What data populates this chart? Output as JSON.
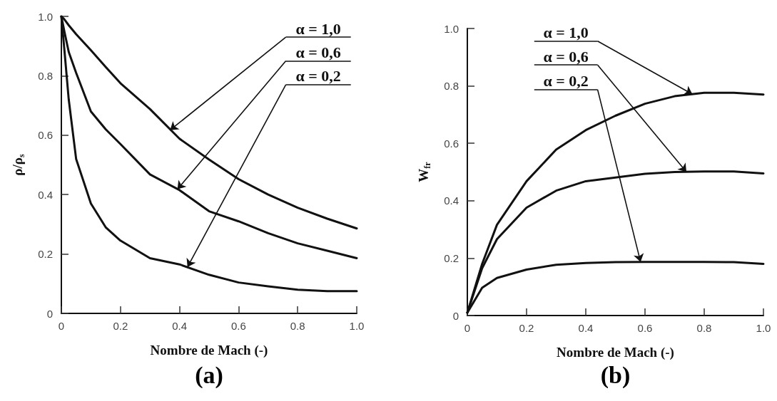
{
  "chart_data": [
    {
      "type": "line",
      "title": "(a)",
      "xlabel": "Nombre de Mach (-)",
      "ylabel": "ρ/ρ$_{s}$",
      "xlim": [
        0,
        1
      ],
      "ylim": [
        0,
        1
      ],
      "xticks": [
        0,
        0.2,
        0.4,
        0.6,
        0.8,
        {
          "value": 1,
          "label": "1.0"
        }
      ],
      "yticks": [
        0,
        0.2,
        0.4,
        0.6,
        0.8,
        {
          "value": 1,
          "label": "1.0"
        }
      ],
      "grid": false,
      "marker": "none",
      "line_style": "solid",
      "x": [
        0,
        0.01,
        0.025,
        0.05,
        0.1,
        0.15,
        0.2,
        0.3,
        0.4,
        0.5,
        0.6,
        0.7,
        0.8,
        0.9,
        1.0
      ],
      "series": [
        {
          "color": "#111111",
          "values": [
            1.0,
            0.99,
            0.97,
            0.94,
            0.886,
            0.83,
            0.775,
            0.688,
            0.588,
            0.518,
            0.452,
            0.4,
            0.356,
            0.319,
            0.286
          ]
        },
        {
          "color": "#111111",
          "values": [
            1.0,
            0.95,
            0.88,
            0.81,
            0.68,
            0.62,
            0.57,
            0.468,
            0.415,
            0.344,
            0.31,
            0.27,
            0.236,
            0.211,
            0.186
          ]
        },
        {
          "color": "#111111",
          "values": [
            1.0,
            0.89,
            0.72,
            0.52,
            0.37,
            0.29,
            0.245,
            0.186,
            0.165,
            0.13,
            0.104,
            0.091,
            0.08,
            0.075,
            0.075
          ]
        }
      ],
      "annotations": [
        {
          "text": "α = 1,0",
          "x": 0.368,
          "y": 0.617
        },
        {
          "text": "α = 0,6",
          "x": 0.393,
          "y": 0.418
        },
        {
          "text": "α = 0,2",
          "x": 0.427,
          "y": 0.156
        }
      ]
    },
    {
      "type": "line",
      "title": "(b)",
      "xlabel": "Nombre de Mach (-)",
      "ylabel": "W$_{fr}$",
      "xlim": [
        0,
        1
      ],
      "ylim": [
        0,
        1
      ],
      "xticks": [
        0,
        0.2,
        0.4,
        0.6,
        0.8,
        {
          "value": 1,
          "label": "1.0"
        }
      ],
      "yticks": [
        0,
        0.2,
        0.4,
        0.6,
        0.8,
        {
          "value": 1,
          "label": "1.0"
        }
      ],
      "grid": false,
      "marker": "none",
      "line_style": "solid",
      "x": [
        0,
        0.05,
        0.1,
        0.2,
        0.3,
        0.4,
        0.5,
        0.6,
        0.7,
        0.8,
        0.9,
        1.0
      ],
      "series": [
        {
          "color": "#111111",
          "values": [
            0.01,
            0.18,
            0.316,
            0.468,
            0.578,
            0.646,
            0.696,
            0.738,
            0.764,
            0.776,
            0.776,
            0.77
          ]
        },
        {
          "color": "#111111",
          "values": [
            0.01,
            0.165,
            0.266,
            0.376,
            0.435,
            0.468,
            0.481,
            0.494,
            0.5,
            0.502,
            0.502,
            0.495
          ]
        },
        {
          "color": "#111111",
          "values": [
            0.01,
            0.097,
            0.131,
            0.16,
            0.177,
            0.183,
            0.186,
            0.187,
            0.187,
            0.187,
            0.186,
            0.18
          ]
        }
      ],
      "annotations": [
        {
          "text": "α = 1,0",
          "x": 0.76,
          "y": 0.771
        },
        {
          "text": "α = 0,6",
          "x": 0.74,
          "y": 0.5
        },
        {
          "text": "α = 0,2",
          "x": 0.585,
          "y": 0.187
        }
      ]
    }
  ]
}
